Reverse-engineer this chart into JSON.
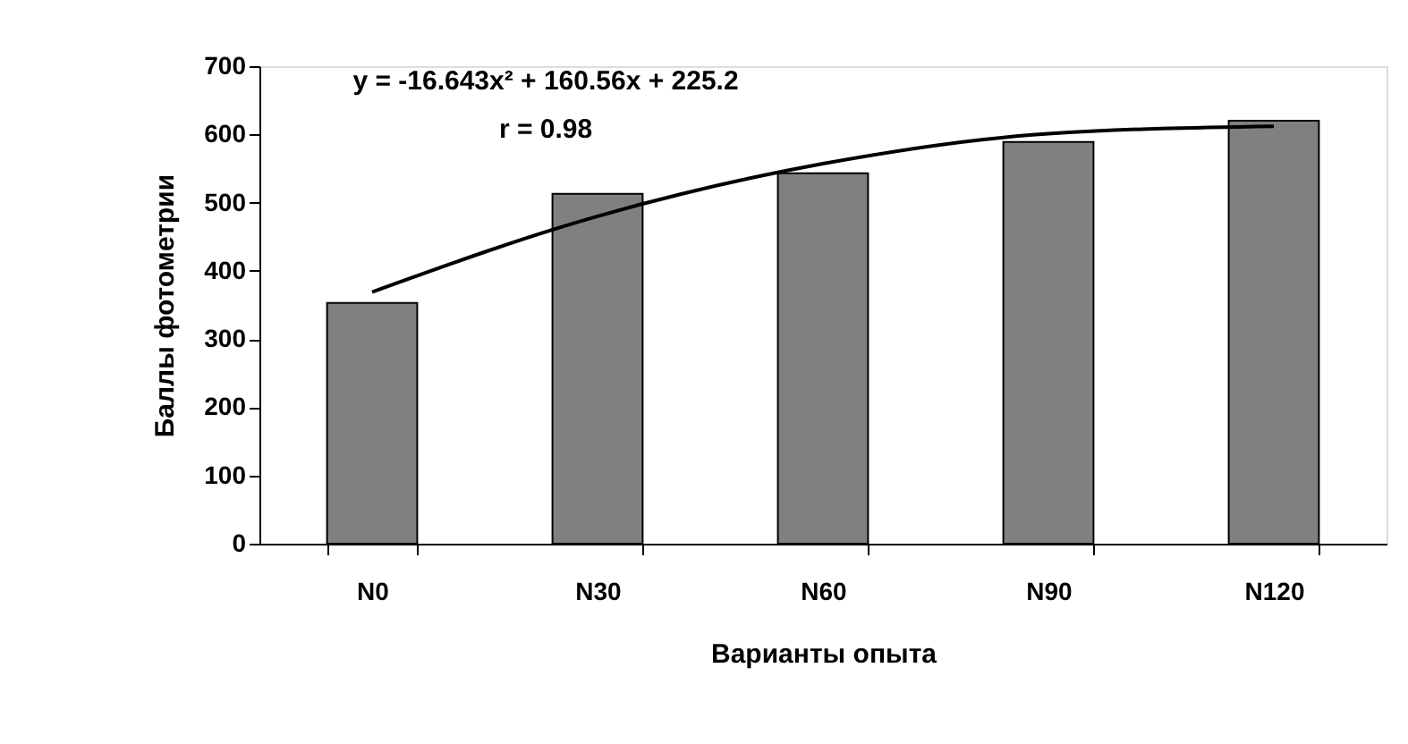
{
  "chart_data": {
    "type": "bar",
    "xlabel": "Варианты опыта",
    "ylabel": "Баллы фотометрии",
    "categories": [
      "N0",
      "N30",
      "N60",
      "N90",
      "N120"
    ],
    "series": [
      {
        "color": "#808080",
        "values": [
          353,
          513,
          543,
          589,
          620
        ]
      },
      {
        "type": "line",
        "color": "#000000",
        "values": [
          369,
          480,
          557,
          601,
          612
        ]
      }
    ],
    "ylim": [
      0,
      700
    ],
    "yticks": [
      0,
      100,
      200,
      300,
      400,
      500,
      600,
      700
    ],
    "grid": false,
    "annotations": [
      "y = -16.643x² + 160.56x + 225.2",
      "r = 0.98"
    ]
  }
}
